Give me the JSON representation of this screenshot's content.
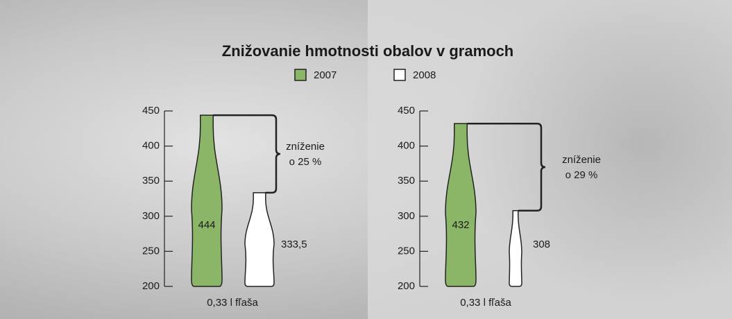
{
  "chart_data": [
    {
      "type": "bottle",
      "title": "Znižovanie hmotnosti obalov v gramoch",
      "categories": [
        "0,33 l fľaša"
      ],
      "series": [
        {
          "name": "2007",
          "color": "#8cb667",
          "values": [
            444
          ]
        },
        {
          "name": "2008",
          "color": "#ffffff",
          "values": [
            333.5
          ],
          "value_labels": [
            "333,5"
          ]
        }
      ],
      "ylim": [
        200,
        450
      ],
      "yticks": [
        200,
        250,
        300,
        350,
        400,
        450
      ],
      "annotation": [
        "zníženie",
        "o 25 %"
      ]
    },
    {
      "type": "bottle",
      "categories": [
        "0,33 l fľaša"
      ],
      "series": [
        {
          "color": "#8cb667",
          "values": [
            432
          ]
        },
        {
          "color": "#ffffff",
          "values": [
            308
          ]
        }
      ],
      "ylim": [
        200,
        450
      ],
      "yticks": [
        200,
        250,
        300,
        350,
        400,
        450
      ],
      "annotation": [
        "zníženie",
        "o 29 %"
      ]
    }
  ]
}
